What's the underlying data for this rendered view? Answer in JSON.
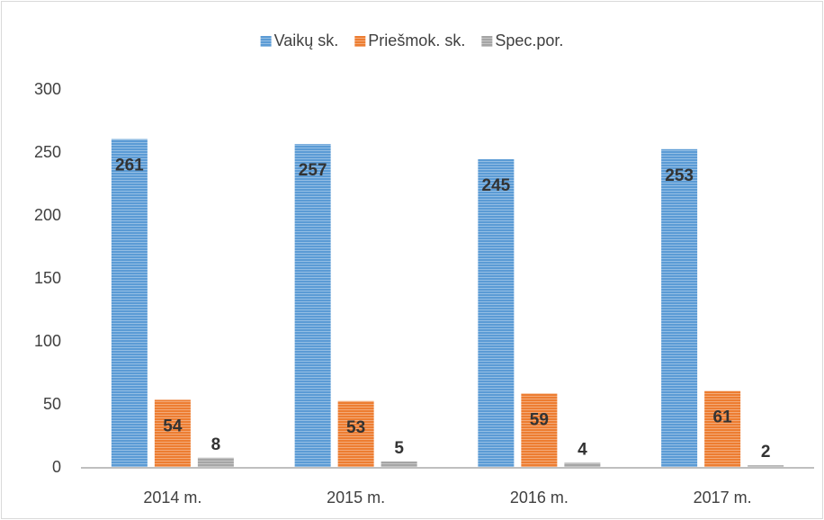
{
  "chart_data": {
    "type": "bar",
    "categories": [
      "2014 m.",
      "2015 m.",
      "2016 m.",
      "2017 m."
    ],
    "series": [
      {
        "name": "Vaikų sk.",
        "color": "#5b9bd5",
        "values": [
          261,
          257,
          245,
          253
        ]
      },
      {
        "name": "Priešmok. sk.",
        "color": "#ed7d31",
        "values": [
          54,
          53,
          59,
          61
        ]
      },
      {
        "name": "Spec.por.",
        "color": "#a5a5a5",
        "values": [
          8,
          5,
          4,
          2
        ]
      }
    ],
    "ylim": [
      0,
      300
    ],
    "yticks": [
      0,
      50,
      100,
      150,
      200,
      250,
      300
    ],
    "grid": false,
    "legend": "top"
  }
}
